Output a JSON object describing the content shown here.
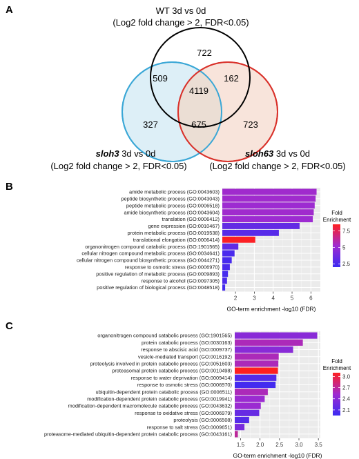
{
  "panels": {
    "a": {
      "letter": "A",
      "sets": [
        {
          "name": "WT 3d vs 0d",
          "subtitle": "(Log2 fold change > 2, FDR<0.05)",
          "italic_part": "",
          "rest": "",
          "color": "#000000",
          "fill": "none"
        },
        {
          "name": "sloh3 3d vs 0d",
          "italic_part": "sloh3",
          "rest": " 3d vs 0d",
          "subtitle": "(Log2 fold change > 2, FDR<0.05)",
          "color": "#3aa7d6",
          "fill": "#d7ecf6"
        },
        {
          "name": "sloh63 3d vs 0d",
          "italic_part": "sloh63",
          "rest": " 3d vs 0d",
          "subtitle": "(Log2 fold change > 2, FDR<0.05)",
          "color": "#d9322b",
          "fill": "#f6ddd2"
        }
      ],
      "regions": {
        "wt_only": "722",
        "wt_sloh3": "509",
        "wt_sloh63": "162",
        "all_three": "4119",
        "sloh3_only": "327",
        "sloh3_sloh63": "675",
        "sloh63_only": "723"
      }
    },
    "b": {
      "letter": "B",
      "xlabel": "GO-term enrichment -log10 (FDR)",
      "legend_title": "Fold\nEnrichment",
      "legend_ticks": [
        "7.5",
        "5",
        "2.5"
      ]
    },
    "c": {
      "letter": "C",
      "xlabel": "GO-term enrichment -log10 (FDR)",
      "legend_title": "Fold\nEnrichment",
      "legend_ticks": [
        "3.0",
        "2.7",
        "2.4",
        "2.1"
      ]
    }
  },
  "chart_data": [
    {
      "type": "bar",
      "orientation": "horizontal",
      "xlabel": "GO-term enrichment -log10 (FDR)",
      "xlim": [
        1.3,
        6.5
      ],
      "xticks": [
        2,
        3,
        4,
        5,
        6
      ],
      "grid": true,
      "legend": "right",
      "color_scale": {
        "name": "Fold Enrichment",
        "min": 2.0,
        "max": 8.5,
        "low": "#3b2bf2",
        "mid": "#9f2bd0",
        "high": "#ff2020"
      },
      "categories": [
        "amide metabolic process (GO:0043603)",
        "peptide biosynthetic process (GO:0043043)",
        "peptide metabolic process (GO:0006518)",
        "amide biosynthetic process (GO:0043604)",
        "translation (GO:0006412)",
        "gene expression (GO:0010467)",
        "protein metabolic process (GO:0019538)",
        "translational elongation (GO:0006414)",
        "organonitrogen compound catabolic process (GO:1901565)",
        "cellular nitrogen compound metabolic process (GO:0034641)",
        "cellular nitrogen compound biosynthetic process (GO:0044271)",
        "response to osmotic stress (GO:0006970)",
        "positive regulation of metabolic process (GO:0009893)",
        "response to alcohol (GO:0097305)",
        "positive regulation of biological process (GO:0048518)"
      ],
      "values": [
        6.3,
        6.25,
        6.2,
        6.15,
        6.1,
        5.4,
        4.3,
        3.05,
        2.15,
        1.95,
        1.8,
        1.7,
        1.6,
        1.55,
        1.45
      ],
      "fold_enrichment": [
        5.3,
        5.3,
        5.2,
        5.3,
        5.2,
        3.3,
        2.9,
        8.4,
        3.2,
        2.5,
        2.4,
        2.5,
        2.4,
        2.6,
        2.3
      ]
    },
    {
      "type": "bar",
      "orientation": "horizontal",
      "xlabel": "GO-term enrichment -log10 (FDR)",
      "xlim": [
        1.35,
        3.55
      ],
      "xticks": [
        1.5,
        2.0,
        2.5,
        3.0,
        3.5
      ],
      "grid": true,
      "legend": "right",
      "color_scale": {
        "name": "Fold Enrichment",
        "min": 1.95,
        "max": 3.1,
        "low": "#3b2bf2",
        "mid": "#9f2bd0",
        "high": "#ff2020"
      },
      "categories": [
        "organonitrogen compound catabolic process (GO:1901565)",
        "protein catabolic process (GO:0030163)",
        "response to abscisic acid (GO:0009737)",
        "vesicle-mediated transport (GO:0016192)",
        "proteolysis involved in protein catabolic process (GO:0051603)",
        "proteasomal protein catabolic process (GO:0010498)",
        "response to water deprivation (GO:0009414)",
        "response to osmotic stress (GO:0006970)",
        "ubiquitin-dependent protein catabolic process (GO:0006511)",
        "modification-dependent protein catabolic process (GO:0019941)",
        "modification-dependent macromolecule catabolic process (GO:0043632)",
        "response to oxidative stress (GO:0006979)",
        "proteolysis (GO:0006508)",
        "response to salt stress (GO:0009651)",
        "proteasome-mediated ubiquitin-dependent protein catabolic process (GO:0043161)"
      ],
      "values": [
        3.47,
        3.1,
        2.85,
        2.48,
        2.47,
        2.46,
        2.42,
        2.4,
        2.2,
        2.12,
        2.02,
        1.98,
        1.72,
        1.6,
        1.43
      ],
      "fold_enrichment": [
        2.4,
        2.6,
        2.4,
        2.6,
        2.6,
        3.1,
        2.1,
        2.0,
        2.6,
        2.5,
        2.5,
        2.2,
        2.1,
        2.3,
        2.7
      ]
    }
  ]
}
